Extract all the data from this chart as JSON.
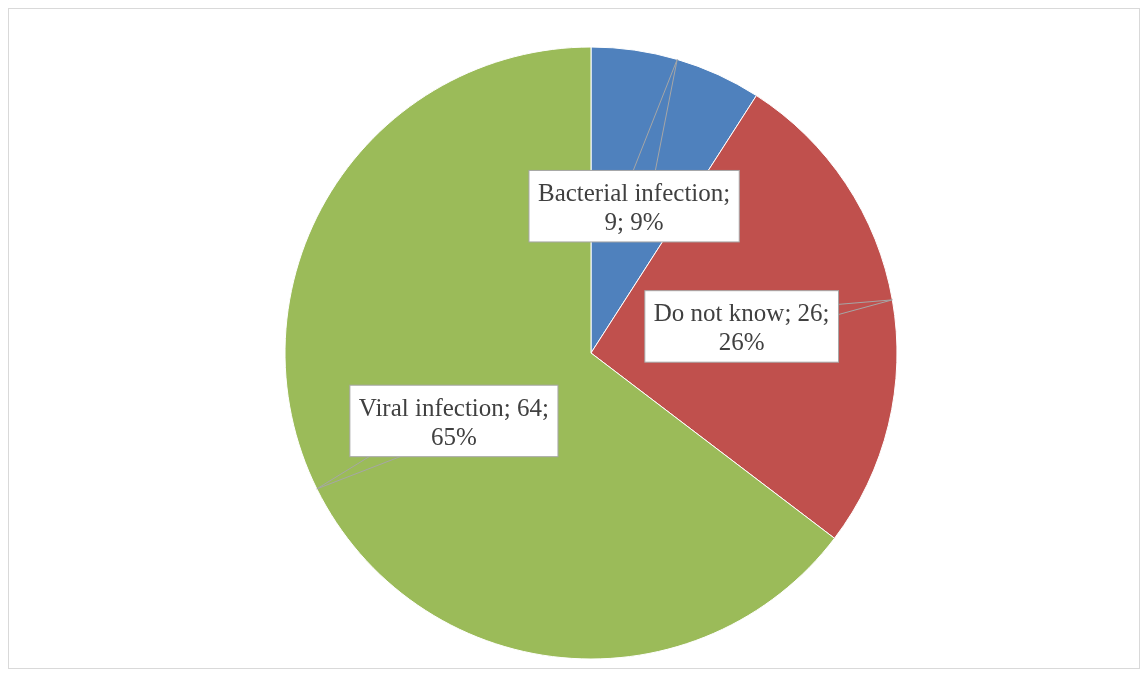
{
  "chart_data": {
    "type": "pie",
    "categories": [
      "Bacterial infection",
      "Do not know",
      "Viral infection"
    ],
    "values": [
      9,
      26,
      64
    ],
    "value_labels": [
      "; 9; 9%",
      "; 26; 26%",
      "; 64; 65%"
    ],
    "colors": [
      "#4f81bd",
      "#c0504d",
      "#9bbb59"
    ],
    "legend": false
  }
}
